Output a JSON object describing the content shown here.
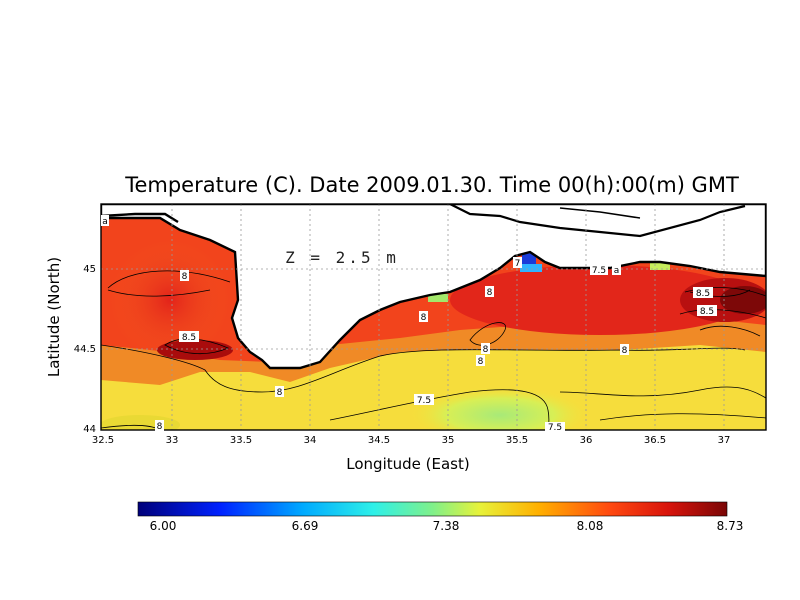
{
  "title": "Temperature (C). Date 2009.01.30. Time 00(h):00(m) GMT",
  "depth_label": "Z = 2.5 m",
  "x_axis": {
    "label": "Longitude (East)",
    "ticks": [
      "32.5",
      "33",
      "33.5",
      "34",
      "34.5",
      "35",
      "35.5",
      "36",
      "36.5",
      "37"
    ],
    "range": [
      32.5,
      37.3
    ]
  },
  "y_axis": {
    "label": "Latitude (North)",
    "ticks": [
      "44",
      "44.5",
      "45"
    ],
    "range": [
      44.0,
      45.42
    ]
  },
  "colorbar": {
    "ticks": [
      "6.00",
      "6.69",
      "7.38",
      "8.08",
      "8.73"
    ],
    "min": 6.0,
    "max": 8.73
  },
  "contour_labels": [
    "8",
    "8.5",
    "8",
    "8.5",
    "8",
    "8",
    "7.5",
    "7.5",
    "8",
    "8",
    "8",
    "7.5",
    "8",
    "8.5",
    "8.5",
    "a",
    "a",
    "8",
    "7.5",
    "7"
  ],
  "colors": {
    "land": "#ffffff",
    "coast": "#000000",
    "warm": "#e8301a",
    "hot": "#8b0a0a",
    "mild": "#f7e13a",
    "cool": "#9be86b"
  }
}
